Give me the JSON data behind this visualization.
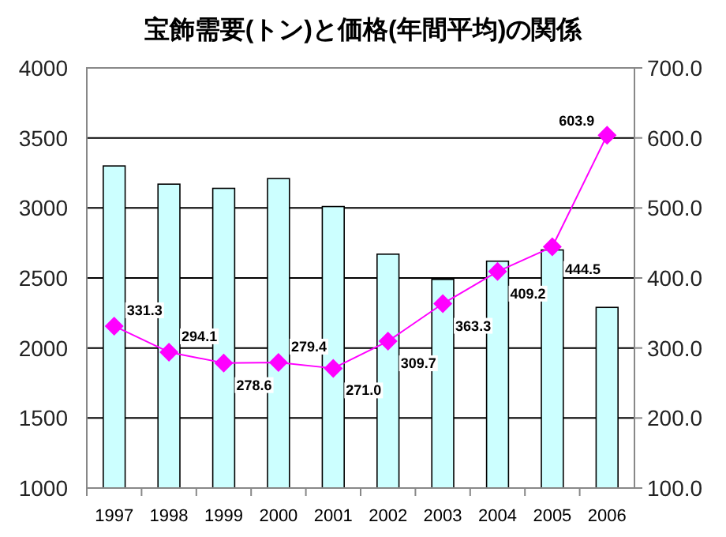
{
  "chart_data": {
    "type": "bar",
    "title": "宝飾需要(トン)と価格(年間平均)の関係",
    "categories": [
      "1997",
      "1998",
      "1999",
      "2000",
      "2001",
      "2002",
      "2003",
      "2004",
      "2005",
      "2006"
    ],
    "series": [
      {
        "color": "#ccffff",
        "values": [
          3300,
          3170,
          3140,
          3210,
          3010,
          2670,
          2490,
          2620,
          2700,
          2290
        ]
      },
      {
        "type": "line",
        "axis": "y2",
        "color": "#ff00ff",
        "marker": "diamond",
        "value_labels": [
          "331.3",
          "294.1",
          "278.6",
          "279.4",
          "271.0",
          "309.7",
          "363.3",
          "409.2",
          "444.5",
          "603.9"
        ],
        "values": [
          331.3,
          294.1,
          278.6,
          279.4,
          271.0,
          309.7,
          363.3,
          409.2,
          444.5,
          603.9
        ]
      }
    ],
    "ylim": [
      1000,
      4000
    ],
    "yticks": [
      1000,
      1500,
      2000,
      2500,
      3000,
      3500,
      4000
    ],
    "y2lim": [
      100,
      700
    ],
    "y2ticks": [
      {
        "value": 100,
        "label": "100.0"
      },
      {
        "value": 200,
        "label": "200.0"
      },
      {
        "value": 300,
        "label": "300.0"
      },
      {
        "value": 400,
        "label": "400.0"
      },
      {
        "value": 500,
        "label": "500.0"
      },
      {
        "value": 600,
        "label": "600.0"
      },
      {
        "value": 700,
        "label": "700.0"
      }
    ],
    "grid": "y"
  }
}
